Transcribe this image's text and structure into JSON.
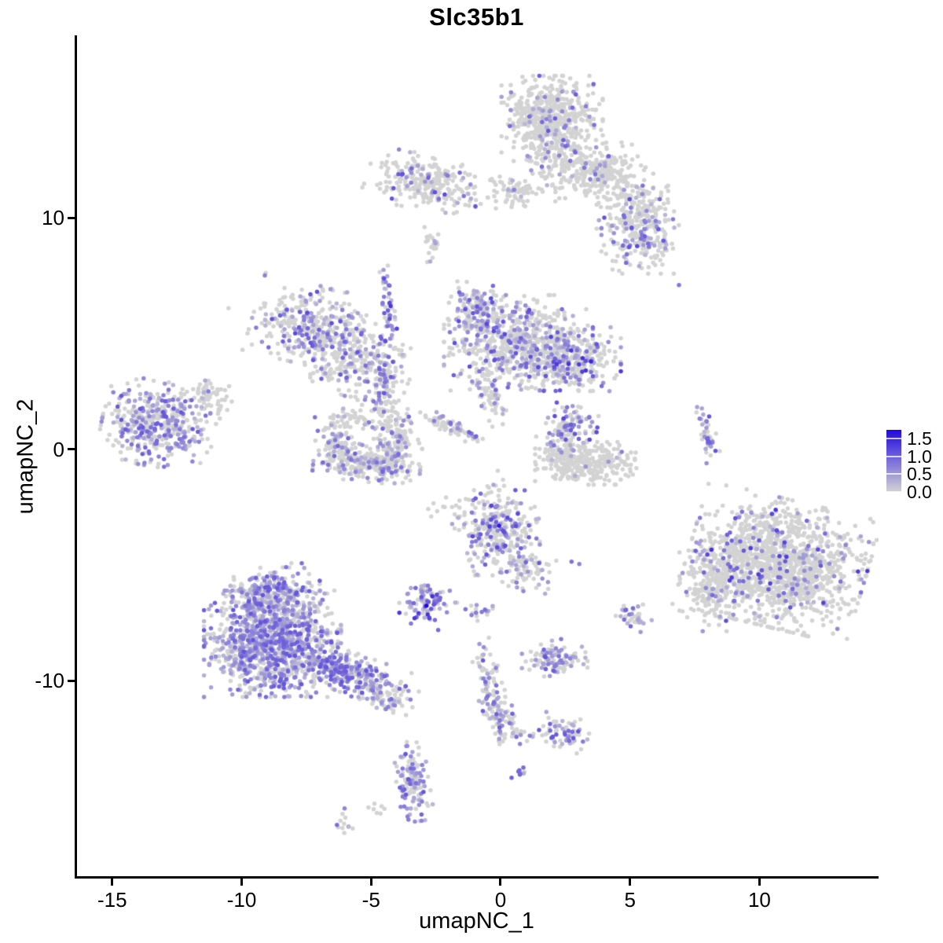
{
  "chart_data": {
    "type": "scatter",
    "title": "Slc35b1",
    "xlabel": "umapNC_1",
    "ylabel": "umapNC_2",
    "xlim": [
      -16.45,
      14.6
    ],
    "ylim": [
      -18.54,
      17.89
    ],
    "x_ticks": [
      -15,
      -10,
      -5,
      0,
      5,
      10
    ],
    "y_ticks": [
      10,
      0,
      -10
    ],
    "grid": false,
    "point_radius_px": 2.75,
    "color_low": "#D3D3D3",
    "color_high": "#2209E0",
    "expression_floor": 0.25,
    "seed": 7,
    "legend": {
      "position": "right",
      "vmin": 0.0,
      "vmax": 1.75,
      "tick_values": [
        1.5,
        1.0,
        0.5,
        0.0
      ],
      "tick_labels": [
        "1.5",
        "1.0",
        "0.5",
        "0.0"
      ]
    },
    "clusters": [
      {
        "n": 560,
        "cx": 1.9,
        "cy": 14.3,
        "sx": 0.85,
        "sy": 0.8,
        "rot": 0,
        "expr_frac": 0.12,
        "expr_max": 1.1
      },
      {
        "n": 170,
        "cx": 2.7,
        "cy": 12.1,
        "sx": 0.8,
        "sy": 0.6,
        "rot": 0,
        "expr_frac": 0.08,
        "expr_max": 0.9
      },
      {
        "n": 150,
        "cx": 3.9,
        "cy": 12.0,
        "sx": 0.7,
        "sy": 0.55,
        "rot": 0,
        "expr_frac": 0.1,
        "expr_max": 1.0
      },
      {
        "n": 120,
        "cx": 5.0,
        "cy": 10.8,
        "sx": 0.6,
        "sy": 0.55,
        "rot": 0,
        "expr_frac": 0.12,
        "expr_max": 1.0
      },
      {
        "n": 240,
        "cx": 5.3,
        "cy": 9.2,
        "sx": 0.65,
        "sy": 0.7,
        "rot": 0,
        "expr_frac": 0.22,
        "expr_max": 1.2
      },
      {
        "n": 260,
        "cx": -2.9,
        "cy": 11.6,
        "sx": 1.05,
        "sy": 0.55,
        "rot": -12,
        "expr_frac": 0.16,
        "expr_max": 1.2
      },
      {
        "n": 70,
        "cx": 0.5,
        "cy": 11.1,
        "sx": 0.45,
        "sy": 0.3,
        "rot": 0,
        "expr_frac": 0.08,
        "expr_max": 0.8
      },
      {
        "n": 22,
        "cx": -2.7,
        "cy": 8.9,
        "sx": 0.18,
        "sy": 0.35,
        "rot": 0,
        "expr_frac": 0.08,
        "expr_max": 0.7
      },
      {
        "n": 45,
        "cx": -4.45,
        "cy": 6.2,
        "sx": 0.13,
        "sy": 0.75,
        "rot": 8,
        "expr_frac": 0.6,
        "expr_max": 1.4
      },
      {
        "n": 330,
        "cx": -7.5,
        "cy": 5.4,
        "sx": 0.95,
        "sy": 0.75,
        "rot": -15,
        "expr_frac": 0.38,
        "expr_max": 1.2
      },
      {
        "n": 270,
        "cx": -5.7,
        "cy": 4.0,
        "sx": 1.0,
        "sy": 0.75,
        "rot": -20,
        "expr_frac": 0.3,
        "expr_max": 1.1
      },
      {
        "n": 110,
        "cx": -4.6,
        "cy": 2.5,
        "sx": 0.25,
        "sy": 1.0,
        "rot": 0,
        "expr_frac": 0.35,
        "expr_max": 1.1
      },
      {
        "n": 150,
        "cx": -1.05,
        "cy": 5.9,
        "sx": 0.45,
        "sy": 0.6,
        "rot": 0,
        "expr_frac": 0.5,
        "expr_max": 1.2
      },
      {
        "n": 680,
        "cx": 0.6,
        "cy": 4.6,
        "sx": 1.25,
        "sy": 0.9,
        "rot": 0,
        "expr_frac": 0.3,
        "expr_max": 1.2
      },
      {
        "n": 300,
        "cx": 2.6,
        "cy": 3.9,
        "sx": 0.85,
        "sy": 0.6,
        "rot": 0,
        "expr_frac": 0.28,
        "expr_max": 1.4
      },
      {
        "n": 60,
        "cx": -0.45,
        "cy": 2.4,
        "sx": 0.25,
        "sy": 0.6,
        "rot": 15,
        "expr_frac": 0.2,
        "expr_max": 0.9
      },
      {
        "n": 430,
        "cx": -13.3,
        "cy": 1.1,
        "sx": 0.95,
        "sy": 0.8,
        "rot": -10,
        "expr_frac": 0.45,
        "expr_max": 1.1
      },
      {
        "n": 60,
        "cx": -11.4,
        "cy": 2.4,
        "sx": 0.5,
        "sy": 0.4,
        "rot": -30,
        "expr_frac": 0.08,
        "expr_max": 0.8
      },
      {
        "n": 90,
        "cx": -6.3,
        "cy": 0.3,
        "sx": 0.3,
        "sy": 0.6,
        "rot": 15,
        "expr_frac": 0.25,
        "expr_max": 1.0
      },
      {
        "n": 260,
        "cx": -5.25,
        "cy": -0.6,
        "sx": 0.9,
        "sy": 0.35,
        "rot": -5,
        "expr_frac": 0.28,
        "expr_max": 1.0
      },
      {
        "n": 140,
        "cx": -4.05,
        "cy": 0.3,
        "sx": 0.35,
        "sy": 0.65,
        "rot": -12,
        "expr_frac": 0.3,
        "expr_max": 1.0
      },
      {
        "n": 40,
        "cx": -5.6,
        "cy": 1.35,
        "sx": 0.5,
        "sy": 0.25,
        "rot": 0,
        "expr_frac": 0.08,
        "expr_max": 0.6
      },
      {
        "n": 70,
        "cx": -1.95,
        "cy": 0.95,
        "sx": 0.55,
        "sy": 0.13,
        "rot": -28,
        "expr_frac": 0.3,
        "expr_max": 1.0
      },
      {
        "n": 110,
        "cx": 2.6,
        "cy": 1.05,
        "sx": 0.45,
        "sy": 0.5,
        "rot": -30,
        "expr_frac": 0.45,
        "expr_max": 1.3
      },
      {
        "n": 290,
        "cx": 3.2,
        "cy": -0.6,
        "sx": 0.85,
        "sy": 0.4,
        "rot": 0,
        "expr_frac": 0.03,
        "expr_max": 0.8
      },
      {
        "n": 60,
        "cx": 2.15,
        "cy": -0.1,
        "sx": 0.3,
        "sy": 0.3,
        "rot": 0,
        "expr_frac": 0.05,
        "expr_max": 0.6
      },
      {
        "n": 45,
        "cx": 7.9,
        "cy": 0.5,
        "sx": 0.16,
        "sy": 0.6,
        "rot": 10,
        "expr_frac": 0.55,
        "expr_max": 1.1
      },
      {
        "n": 1350,
        "cx": 10.6,
        "cy": -4.9,
        "sx": 1.5,
        "sy": 1.2,
        "rot": -15,
        "expr_frac": 0.1,
        "expr_max": 1.4
      },
      {
        "n": 220,
        "cx": 8.2,
        "cy": -5.9,
        "sx": 0.6,
        "sy": 0.85,
        "rot": 0,
        "expr_frac": 0.15,
        "expr_max": 1.2
      },
      {
        "n": 300,
        "cx": -0.3,
        "cy": -3.6,
        "sx": 0.75,
        "sy": 0.8,
        "rot": 0,
        "expr_frac": 0.35,
        "expr_max": 1.3
      },
      {
        "n": 80,
        "cx": 0.9,
        "cy": -5.2,
        "sx": 0.5,
        "sy": 0.45,
        "rot": -30,
        "expr_frac": 0.3,
        "expr_max": 1.1
      },
      {
        "n": 90,
        "cx": -2.85,
        "cy": -6.6,
        "sx": 0.5,
        "sy": 0.4,
        "rot": 0,
        "expr_frac": 0.75,
        "expr_max": 1.4
      },
      {
        "n": 16,
        "cx": -0.8,
        "cy": -7.0,
        "sx": 0.35,
        "sy": 0.2,
        "rot": 0,
        "expr_frac": 0.5,
        "expr_max": 1.0
      },
      {
        "n": 35,
        "cx": 5.0,
        "cy": -7.2,
        "sx": 0.35,
        "sy": 0.3,
        "rot": 0,
        "expr_frac": 0.4,
        "expr_max": 1.0
      },
      {
        "n": 1150,
        "cx": -8.9,
        "cy": -8.4,
        "sx": 1.15,
        "sy": 1.0,
        "rot": 0,
        "expr_frac": 0.6,
        "expr_max": 1.1
      },
      {
        "n": 280,
        "cx": -8.8,
        "cy": -6.3,
        "sx": 0.75,
        "sy": 0.6,
        "rot": 0,
        "expr_frac": 0.5,
        "expr_max": 1.1
      },
      {
        "n": 300,
        "cx": -5.9,
        "cy": -9.7,
        "sx": 0.95,
        "sy": 0.4,
        "rot": -22,
        "expr_frac": 0.55,
        "expr_max": 1.1
      },
      {
        "n": 60,
        "cx": -4.4,
        "cy": -10.6,
        "sx": 0.45,
        "sy": 0.3,
        "rot": -20,
        "expr_frac": 0.4,
        "expr_max": 1.0
      },
      {
        "n": 110,
        "cx": 2.0,
        "cy": -9.0,
        "sx": 0.55,
        "sy": 0.35,
        "rot": 0,
        "expr_frac": 0.6,
        "expr_max": 1.1
      },
      {
        "n": 60,
        "cx": -0.55,
        "cy": -9.9,
        "sx": 0.2,
        "sy": 0.75,
        "rot": 12,
        "expr_frac": 0.25,
        "expr_max": 1.1
      },
      {
        "n": 75,
        "cx": -0.2,
        "cy": -11.4,
        "sx": 0.3,
        "sy": 0.5,
        "rot": 20,
        "expr_frac": 0.5,
        "expr_max": 1.1
      },
      {
        "n": 18,
        "cx": 0.35,
        "cy": -12.4,
        "sx": 0.3,
        "sy": 0.25,
        "rot": 0,
        "expr_frac": 0.3,
        "expr_max": 0.9
      },
      {
        "n": 70,
        "cx": 2.25,
        "cy": -12.3,
        "sx": 0.45,
        "sy": 0.35,
        "rot": -15,
        "expr_frac": 0.45,
        "expr_max": 1.1
      },
      {
        "n": 8,
        "cx": 0.75,
        "cy": -14.0,
        "sx": 0.2,
        "sy": 0.15,
        "rot": 0,
        "expr_frac": 0.7,
        "expr_max": 1.0
      },
      {
        "n": 140,
        "cx": -3.5,
        "cy": -14.35,
        "sx": 0.28,
        "sy": 0.75,
        "rot": 8,
        "expr_frac": 0.55,
        "expr_max": 1.1
      },
      {
        "n": 7,
        "cx": -4.75,
        "cy": -15.5,
        "sx": 0.25,
        "sy": 0.15,
        "rot": 0,
        "expr_frac": 0.0,
        "expr_max": 0.0
      },
      {
        "n": 12,
        "cx": -6.2,
        "cy": -16.2,
        "sx": 0.2,
        "sy": 0.3,
        "rot": 0,
        "expr_frac": 0.25,
        "expr_max": 0.9
      },
      {
        "n": 10,
        "cx": -0.4,
        "cy": -1.6,
        "sx": 0.3,
        "sy": 0.4,
        "rot": 0,
        "expr_frac": 0.1,
        "expr_max": 0.6
      },
      {
        "n": 8,
        "cx": -2.5,
        "cy": -2.6,
        "sx": 0.3,
        "sy": 0.25,
        "rot": 0,
        "expr_frac": 0.1,
        "expr_max": 0.6
      }
    ],
    "singletons": [
      {
        "x": 6.8,
        "y": 7.1,
        "v": 0.8
      },
      {
        "x": -10.6,
        "y": 6.1,
        "v": 0.0
      },
      {
        "x": 2.65,
        "y": -4.85,
        "v": 0.85
      },
      {
        "x": 2.95,
        "y": -4.95,
        "v": 0.7
      },
      {
        "x": -2.95,
        "y": -6.75,
        "v": 1.75
      },
      {
        "x": -0.15,
        "y": -3.3,
        "v": 1.6
      },
      {
        "x": 3.4,
        "y": 3.8,
        "v": 1.5
      },
      {
        "x": -2.5,
        "y": -7.8,
        "v": 0.9
      }
    ]
  }
}
